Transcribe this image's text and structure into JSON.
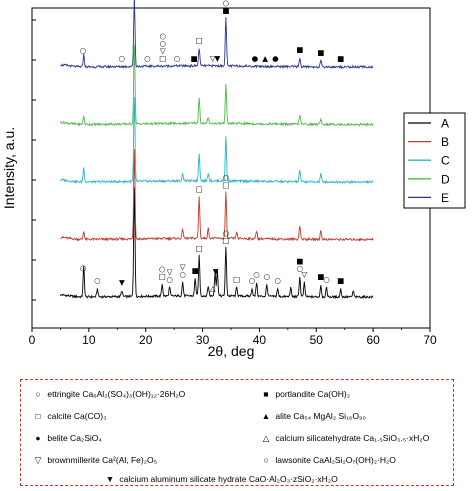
{
  "chart_data": {
    "type": "line",
    "xlabel": "2θ, deg",
    "ylabel": "Intensity, a.u.",
    "xlim": [
      0,
      70
    ],
    "xticks": [
      0,
      10,
      20,
      30,
      40,
      50,
      60,
      70
    ],
    "y_tick_labels_shown": false,
    "grid": false,
    "legend_placement": "right",
    "offset_stacked": true,
    "series": [
      {
        "name": "A",
        "color": "#000000",
        "offset": 0,
        "peaks": [
          [
            9.1,
            30
          ],
          [
            11.5,
            8
          ],
          [
            15.8,
            6
          ],
          [
            18.0,
            110
          ],
          [
            22.9,
            12
          ],
          [
            24.2,
            9
          ],
          [
            26.5,
            14
          ],
          [
            28.7,
            18
          ],
          [
            29.4,
            40
          ],
          [
            31.0,
            10
          ],
          [
            32.2,
            24
          ],
          [
            32.6,
            26
          ],
          [
            34.1,
            48
          ],
          [
            36.0,
            9
          ],
          [
            38.7,
            8
          ],
          [
            39.5,
            14
          ],
          [
            41.3,
            12
          ],
          [
            43.2,
            8
          ],
          [
            45.5,
            9
          ],
          [
            47.1,
            20
          ],
          [
            47.9,
            14
          ],
          [
            50.8,
            12
          ],
          [
            51.8,
            9
          ],
          [
            54.3,
            8
          ],
          [
            56.5,
            6
          ]
        ]
      },
      {
        "name": "B",
        "color": "#c0392b",
        "offset": 1,
        "peaks": [
          [
            9.1,
            8
          ],
          [
            18.0,
            90
          ],
          [
            26.5,
            10
          ],
          [
            29.4,
            42
          ],
          [
            31.0,
            10
          ],
          [
            34.1,
            46
          ],
          [
            36.0,
            6
          ],
          [
            39.5,
            8
          ],
          [
            47.1,
            14
          ],
          [
            50.8,
            9
          ]
        ]
      },
      {
        "name": "C",
        "color": "#2bb5c8",
        "offset": 2,
        "peaks": [
          [
            9.1,
            14
          ],
          [
            18.0,
            84
          ],
          [
            26.5,
            8
          ],
          [
            29.4,
            28
          ],
          [
            31.0,
            8
          ],
          [
            34.1,
            44
          ],
          [
            47.1,
            12
          ],
          [
            50.8,
            8
          ]
        ]
      },
      {
        "name": "D",
        "color": "#52b84a",
        "offset": 3,
        "peaks": [
          [
            9.1,
            8
          ],
          [
            18.0,
            80
          ],
          [
            29.4,
            26
          ],
          [
            31.0,
            6
          ],
          [
            34.1,
            40
          ],
          [
            47.1,
            10
          ],
          [
            50.8,
            6
          ]
        ]
      },
      {
        "name": "E",
        "color": "#2c3590",
        "offset": 4,
        "peaks": [
          [
            9.1,
            12
          ],
          [
            18.0,
            70
          ],
          [
            29.4,
            18
          ],
          [
            34.1,
            48
          ],
          [
            47.1,
            9
          ],
          [
            50.8,
            6
          ]
        ]
      }
    ],
    "annotations": [
      {
        "series": "E",
        "x": 9.0,
        "symbol": "○"
      },
      {
        "series": "E",
        "x": 15.8,
        "symbol": "○"
      },
      {
        "series": "E",
        "x": 18.0,
        "symbol": "■"
      },
      {
        "series": "E",
        "x": 20.3,
        "symbol": "○"
      },
      {
        "series": "E",
        "x": 23.0,
        "symbol": "□"
      },
      {
        "series": "E",
        "x": 23.0,
        "symbol": "▽"
      },
      {
        "series": "E",
        "x": 23.0,
        "symbol": "○"
      },
      {
        "series": "E",
        "x": 23.0,
        "symbol": "○"
      },
      {
        "series": "E",
        "x": 25.5,
        "symbol": "○"
      },
      {
        "series": "E",
        "x": 28.5,
        "symbol": "■"
      },
      {
        "series": "E",
        "x": 29.4,
        "symbol": "□"
      },
      {
        "series": "E",
        "x": 31.8,
        "symbol": "▽"
      },
      {
        "series": "E",
        "x": 32.6,
        "symbol": "▼"
      },
      {
        "series": "E",
        "x": 34.1,
        "symbol": "■"
      },
      {
        "series": "E",
        "x": 34.1,
        "symbol": "○"
      },
      {
        "series": "E",
        "x": 39.2,
        "symbol": "●"
      },
      {
        "series": "E",
        "x": 41.0,
        "symbol": "▲"
      },
      {
        "series": "E",
        "x": 42.8,
        "symbol": "●"
      },
      {
        "series": "E",
        "x": 47.1,
        "symbol": "■"
      },
      {
        "series": "E",
        "x": 50.8,
        "symbol": "■"
      },
      {
        "series": "E",
        "x": 54.3,
        "symbol": "■"
      },
      {
        "series": "B",
        "x": 29.4,
        "symbol": "□"
      },
      {
        "series": "B",
        "x": 34.1,
        "symbol": "□"
      },
      {
        "series": "B",
        "x": 34.1,
        "symbol": "○"
      },
      {
        "series": "A",
        "x": 9.0,
        "symbol": "○"
      },
      {
        "series": "A",
        "x": 11.5,
        "symbol": "○"
      },
      {
        "series": "A",
        "x": 15.8,
        "symbol": "▼"
      },
      {
        "series": "A",
        "x": 22.9,
        "symbol": "□"
      },
      {
        "series": "A",
        "x": 22.9,
        "symbol": "○"
      },
      {
        "series": "A",
        "x": 24.2,
        "symbol": "○"
      },
      {
        "series": "A",
        "x": 24.2,
        "symbol": "▽"
      },
      {
        "series": "A",
        "x": 26.5,
        "symbol": "○"
      },
      {
        "series": "A",
        "x": 26.5,
        "symbol": "▽"
      },
      {
        "series": "A",
        "x": 28.7,
        "symbol": "■"
      },
      {
        "series": "A",
        "x": 29.4,
        "symbol": "□"
      },
      {
        "series": "A",
        "x": 31.8,
        "symbol": "△"
      },
      {
        "series": "A",
        "x": 32.3,
        "symbol": "▼"
      },
      {
        "series": "A",
        "x": 34.1,
        "symbol": "□"
      },
      {
        "series": "A",
        "x": 34.1,
        "symbol": "○"
      },
      {
        "series": "A",
        "x": 36.0,
        "symbol": "□"
      },
      {
        "series": "A",
        "x": 38.7,
        "symbol": "○"
      },
      {
        "series": "A",
        "x": 39.5,
        "symbol": "○"
      },
      {
        "series": "A",
        "x": 41.3,
        "symbol": "○"
      },
      {
        "series": "A",
        "x": 43.2,
        "symbol": "○"
      },
      {
        "series": "A",
        "x": 47.1,
        "symbol": "○"
      },
      {
        "series": "A",
        "x": 47.1,
        "symbol": "■"
      },
      {
        "series": "A",
        "x": 47.9,
        "symbol": "▽"
      },
      {
        "series": "A",
        "x": 50.8,
        "symbol": "■"
      },
      {
        "series": "A",
        "x": 51.8,
        "symbol": "○"
      },
      {
        "series": "A",
        "x": 54.3,
        "symbol": "■"
      }
    ]
  },
  "phase_legend": [
    {
      "symbol": "○",
      "text": "ettringite Ca₆Al₂(SO₄)₃(OH)₁₂·26H₂O"
    },
    {
      "symbol": "■",
      "text": "portlandite Ca(OH)₂"
    },
    {
      "symbol": "□",
      "text": "calcite Ca(CO)₃"
    },
    {
      "symbol": "▲",
      "text": "alite Ca₅₄ MgAl₂ Si₁₆O₉₀"
    },
    {
      "symbol": "●",
      "text": "belite Ca₂SiO₄"
    },
    {
      "symbol": "△",
      "text": "calcium silicatehydrate Ca₁.₅SiO₃.₅·xH₂O"
    },
    {
      "symbol": "▽",
      "text": "brownmillerite Ca²(Al, Fe)₂O₅"
    },
    {
      "symbol": "○",
      "text": "lawsonite CaAl₂Si₂O₇(OH)₂·H₂O"
    },
    {
      "symbol": "▼",
      "text": "calcium aluminum silicate hydrate CaO·Al₂O₃·zSiO₂·xH₂O"
    }
  ]
}
